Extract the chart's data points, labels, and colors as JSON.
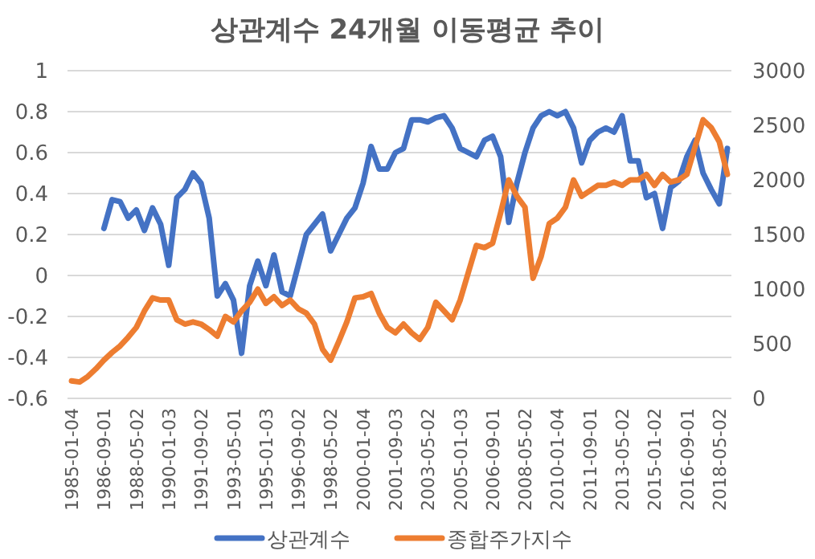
{
  "chart_data": {
    "type": "line",
    "title": "상관계수 24개월 이동평균 추이",
    "categories": [
      "1985-01-04",
      null,
      null,
      null,
      "1986-09-01",
      null,
      null,
      null,
      "1988-05-02",
      null,
      null,
      null,
      "1990-01-03",
      null,
      null,
      null,
      "1991-09-02",
      null,
      null,
      null,
      "1993-05-01",
      null,
      null,
      null,
      "1995-01-03",
      null,
      null,
      null,
      "1996-09-02",
      null,
      null,
      null,
      "1998-05-02",
      null,
      null,
      null,
      "2000-01-04",
      null,
      null,
      null,
      "2001-09-03",
      null,
      null,
      null,
      "2003-05-02",
      null,
      null,
      null,
      "2005-01-03",
      null,
      null,
      null,
      "2006-09-01",
      null,
      null,
      null,
      "2008-05-02",
      null,
      null,
      null,
      "2010-01-04",
      null,
      null,
      null,
      "2011-09-01",
      null,
      null,
      null,
      "2013-05-02",
      null,
      null,
      null,
      "2015-01-02",
      null,
      null,
      null,
      "2016-09-01",
      null,
      null,
      null,
      "2018-05-02",
      null
    ],
    "series": [
      {
        "name": "상관계수",
        "color": "#4472c4",
        "values": [
          null,
          null,
          null,
          null,
          0.23,
          0.37,
          0.36,
          0.28,
          0.32,
          0.22,
          0.33,
          0.25,
          0.05,
          0.38,
          0.42,
          0.5,
          0.45,
          0.28,
          -0.1,
          -0.04,
          -0.12,
          -0.38,
          -0.05,
          0.07,
          -0.05,
          0.1,
          -0.08,
          -0.1,
          0.05,
          0.2,
          0.25,
          0.3,
          0.12,
          0.2,
          0.28,
          0.33,
          0.45,
          0.63,
          0.52,
          0.52,
          0.6,
          0.62,
          0.76,
          0.76,
          0.75,
          0.77,
          0.78,
          0.72,
          0.62,
          0.6,
          0.58,
          0.66,
          0.68,
          0.58,
          0.26,
          0.45,
          0.6,
          0.72,
          0.78,
          0.8,
          0.78,
          0.8,
          0.72,
          0.55,
          0.66,
          0.7,
          0.72,
          0.7,
          0.78,
          0.56,
          0.56,
          0.38,
          0.4,
          0.23,
          0.43,
          0.46,
          0.58,
          0.66,
          0.5,
          0.42,
          0.35,
          0.62
        ]
      },
      {
        "name": "종합주가지수",
        "color": "#ed7d31",
        "axis": "y2",
        "values": [
          160,
          150,
          200,
          270,
          350,
          420,
          480,
          560,
          650,
          800,
          920,
          900,
          900,
          720,
          680,
          700,
          680,
          630,
          570,
          750,
          700,
          800,
          880,
          1000,
          870,
          930,
          850,
          900,
          820,
          780,
          680,
          450,
          350,
          520,
          700,
          920,
          930,
          960,
          780,
          650,
          600,
          680,
          600,
          540,
          650,
          880,
          800,
          720,
          900,
          1150,
          1400,
          1380,
          1420,
          1700,
          2000,
          1850,
          1750,
          1100,
          1300,
          1600,
          1650,
          1750,
          2000,
          1850,
          1900,
          1950,
          1950,
          1980,
          1950,
          2000,
          2000,
          2050,
          1950,
          2050,
          1980,
          2000,
          2050,
          2300,
          2550,
          2480,
          2350,
          2050
        ]
      }
    ],
    "ylim": [
      -0.6,
      1
    ],
    "yticks": [
      -0.6,
      -0.4,
      -0.2,
      0,
      0.2,
      0.4,
      0.6,
      0.8,
      1
    ],
    "y2lim": [
      0,
      3000
    ],
    "y2ticks": [
      0,
      500,
      1000,
      1500,
      2000,
      2500,
      3000
    ],
    "grid": "y",
    "legend": "bottom",
    "marker": "none",
    "line_style": "solid"
  }
}
